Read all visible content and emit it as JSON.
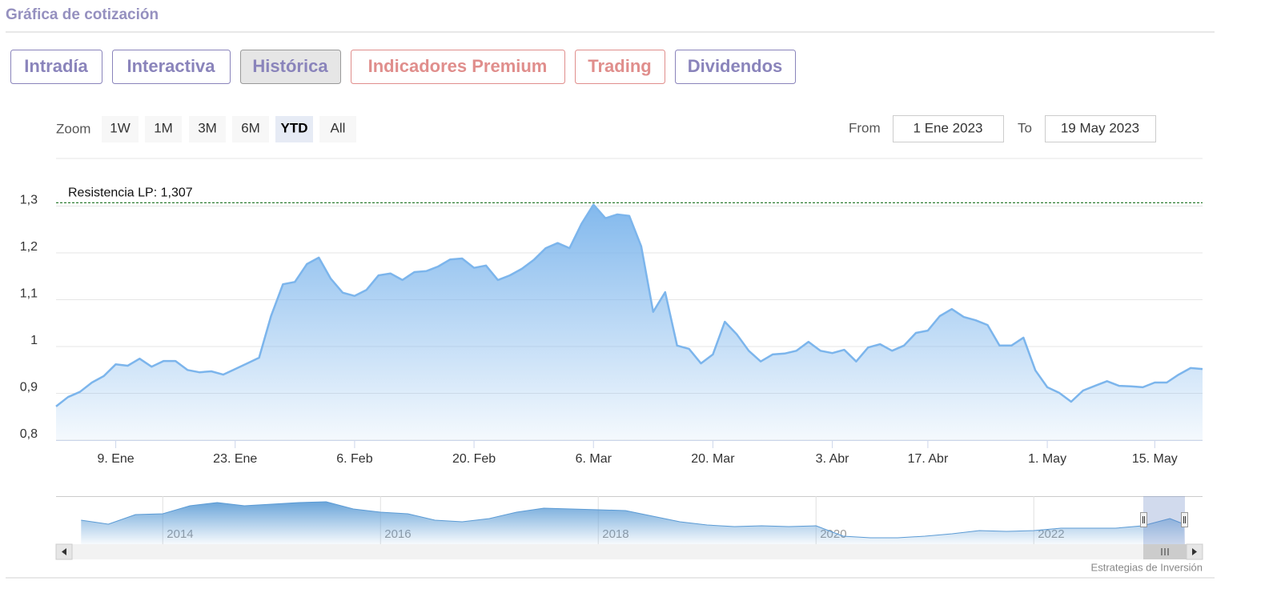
{
  "header": {
    "title": "Gráfica de cotización"
  },
  "tabs": [
    {
      "label": "Intradía",
      "color": "#8a84bb"
    },
    {
      "label": "Interactiva",
      "color": "#8a84bb"
    },
    {
      "label": "Histórica",
      "color": "#8a84bb"
    },
    {
      "label": "Indicadores Premium",
      "color": "#e08e8c"
    },
    {
      "label": "Trading",
      "color": "#e08e8c"
    },
    {
      "label": "Dividendos",
      "color": "#8a84bb"
    }
  ],
  "selected_tab": 2,
  "zoom": {
    "label": "Zoom",
    "buttons": [
      "1W",
      "1M",
      "3M",
      "6M",
      "YTD",
      "All"
    ],
    "selected": 4
  },
  "range": {
    "from_label": "From",
    "from": "1 Ene 2023",
    "to_label": "To",
    "to": "19 May 2023"
  },
  "chart_data": [
    {
      "type": "area",
      "categories": [
        null,
        null,
        null,
        null,
        null,
        "9. Ene",
        null,
        null,
        null,
        null,
        null,
        null,
        null,
        null,
        null,
        "23. Ene",
        null,
        null,
        null,
        null,
        null,
        null,
        null,
        null,
        null,
        "6. Feb",
        null,
        null,
        null,
        null,
        null,
        null,
        null,
        null,
        null,
        "20. Feb",
        null,
        null,
        null,
        null,
        null,
        null,
        null,
        null,
        null,
        "6. Mar",
        null,
        null,
        null,
        null,
        null,
        null,
        null,
        null,
        null,
        "20. Mar",
        null,
        null,
        null,
        null,
        null,
        null,
        null,
        null,
        null,
        "3. Abr",
        null,
        null,
        null,
        null,
        null,
        null,
        null,
        "17. Abr",
        null,
        null,
        null,
        null,
        null,
        null,
        null,
        null,
        null,
        "1. May",
        null,
        null,
        null,
        null,
        null,
        null,
        null,
        null,
        "15. May",
        null,
        null,
        null,
        null
      ],
      "values": [
        0.872,
        0.892,
        0.903,
        0.923,
        0.937,
        0.962,
        0.959,
        0.974,
        0.957,
        0.969,
        0.969,
        0.95,
        0.945,
        0.947,
        0.94,
        0.952,
        0.964,
        0.976,
        1.065,
        1.133,
        1.138,
        1.176,
        1.19,
        1.145,
        1.115,
        1.108,
        1.121,
        1.152,
        1.156,
        1.142,
        1.159,
        1.161,
        1.171,
        1.186,
        1.188,
        1.168,
        1.173,
        1.142,
        1.152,
        1.166,
        1.185,
        1.21,
        1.221,
        1.21,
        1.262,
        1.303,
        1.274,
        1.282,
        1.279,
        1.214,
        1.074,
        1.116,
        1.002,
        0.995,
        0.964,
        0.983,
        1.053,
        1.026,
        0.991,
        0.968,
        0.983,
        0.985,
        0.991,
        1.01,
        0.991,
        0.986,
        0.993,
        0.968,
        0.998,
        1.005,
        0.991,
        1.002,
        1.029,
        1.034,
        1.065,
        1.08,
        1.063,
        1.056,
        1.046,
        1.002,
        1.002,
        1.019,
        0.949,
        0.913,
        0.901,
        0.882,
        0.906,
        0.916,
        0.926,
        0.916,
        0.915,
        0.913,
        0.923,
        0.923,
        0.94,
        0.954,
        0.952
      ],
      "color": "#7cb5ec",
      "ylim": [
        0.8,
        1.4
      ],
      "yticks": [
        {
          "value": 0.8,
          "label": "0,8"
        },
        {
          "value": 0.9,
          "label": "0,9"
        },
        1,
        {
          "value": 1.1,
          "label": "1,1"
        },
        {
          "value": 1.2,
          "label": "1,2"
        },
        {
          "value": 1.3,
          "label": "1,3"
        }
      ],
      "grid": true,
      "resistance": {
        "label": "Resistencia LP: 1,307",
        "value": 1.307,
        "color": "#2e7d32"
      }
    },
    {
      "type": "area",
      "x": [
        2013.25,
        2013.5,
        2013.75,
        2014,
        2014.25,
        2014.5,
        2014.75,
        2015,
        2015.25,
        2015.5,
        2015.75,
        2016,
        2016.25,
        2016.5,
        2016.75,
        2017,
        2017.25,
        2017.5,
        2017.75,
        2018,
        2018.25,
        2018.5,
        2018.75,
        2019,
        2019.25,
        2019.5,
        2019.75,
        2020,
        2020.25,
        2020.5,
        2020.75,
        2021,
        2021.25,
        2021.5,
        2021.75,
        2022,
        2022.25,
        2022.5,
        2022.75,
        2023,
        2023.25,
        2023.38
      ],
      "values": [
        1.2,
        1.0,
        1.48,
        1.52,
        1.92,
        2.08,
        1.92,
        2.0,
        2.08,
        2.12,
        1.76,
        1.6,
        1.52,
        1.2,
        1.12,
        1.28,
        1.6,
        1.8,
        1.76,
        1.72,
        1.68,
        1.4,
        1.12,
        0.96,
        0.88,
        0.92,
        0.88,
        0.92,
        0.4,
        0.32,
        0.32,
        0.4,
        0.52,
        0.68,
        0.64,
        0.68,
        0.8,
        0.8,
        0.8,
        0.92,
        1.28,
        1.0
      ],
      "color": "#5b9bd5",
      "xlim": [
        2013.02,
        2023.55
      ],
      "xticks": [
        2014,
        2016,
        2018,
        2020,
        2022
      ],
      "ylim": [
        0,
        2.4
      ]
    }
  ],
  "credit": "Estrategias de Inversión"
}
